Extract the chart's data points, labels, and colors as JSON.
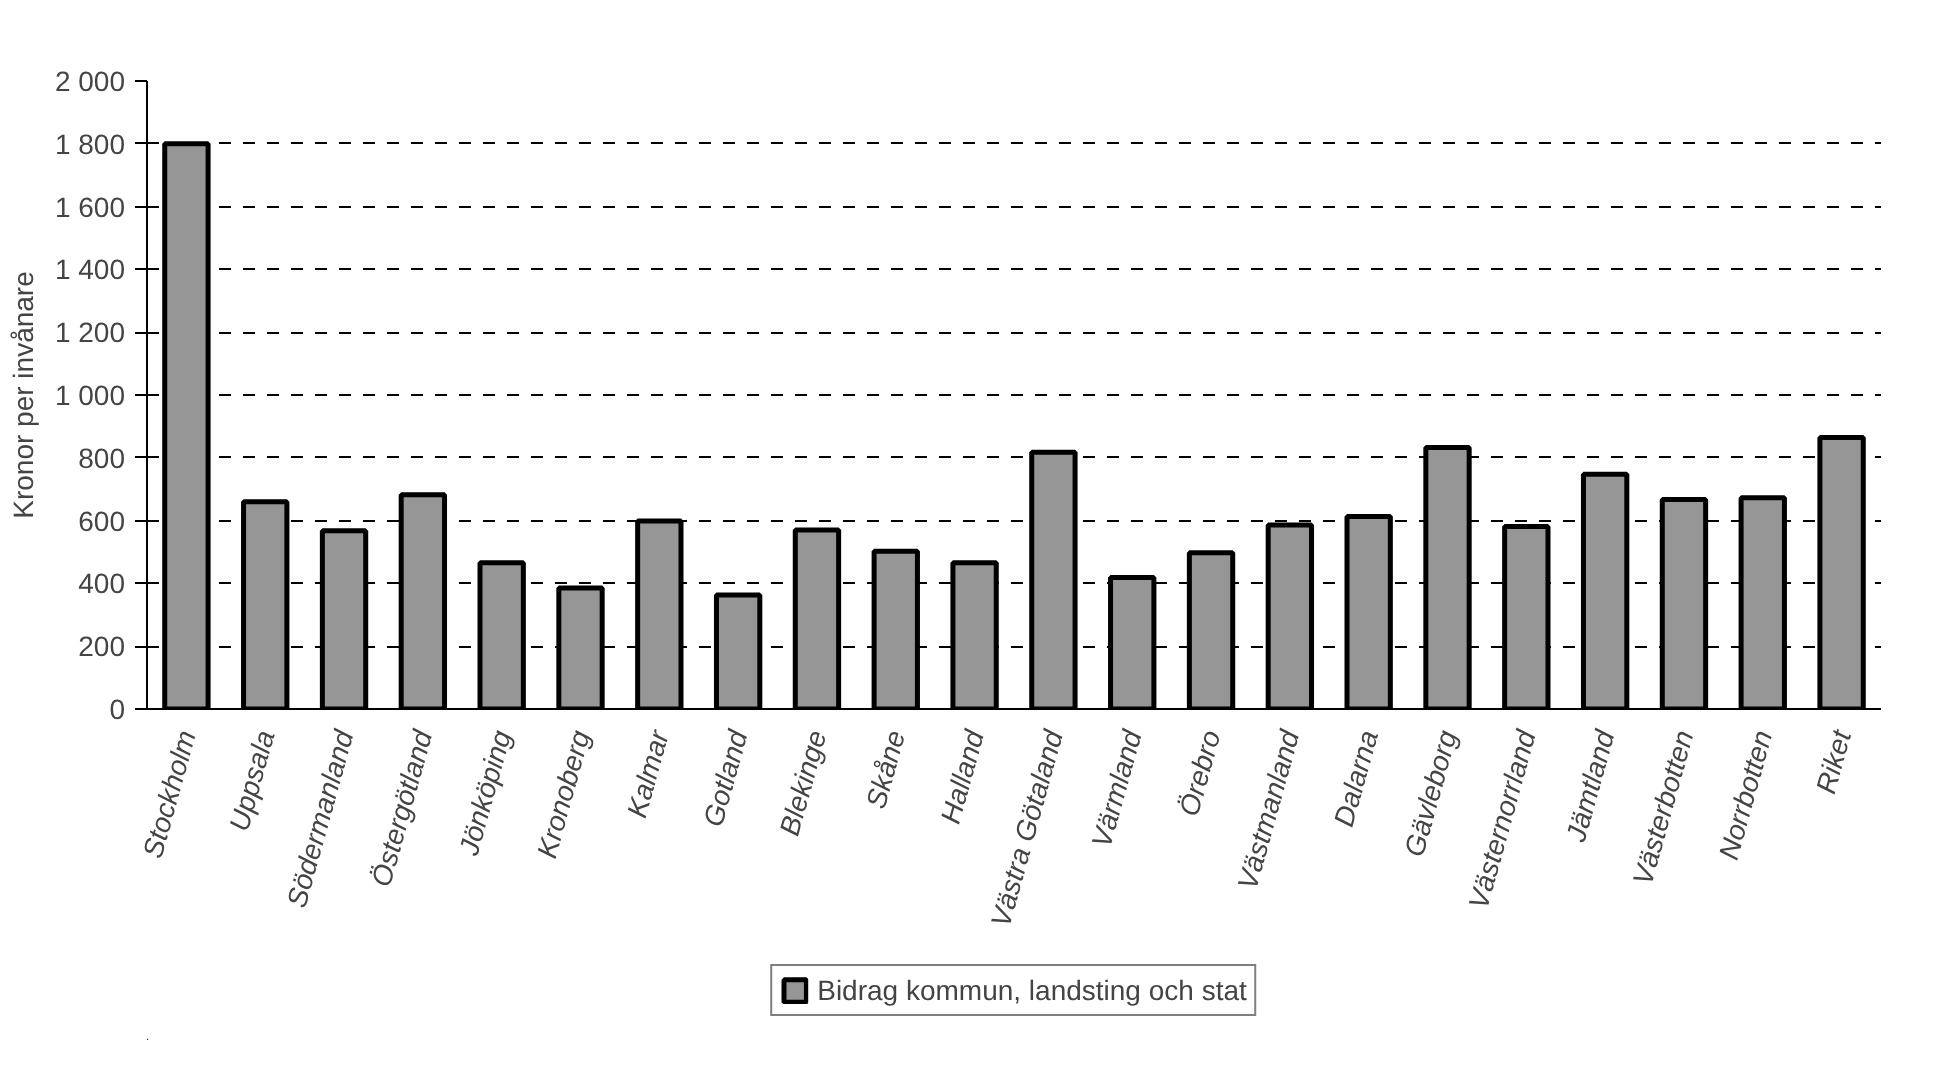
{
  "chart_data": {
    "type": "bar",
    "ylabel": "Kronor per invånare",
    "categories": [
      "Stockholm",
      "Uppsala",
      "Södermanland",
      "Östergötland",
      "Jönköping",
      "Kronoberg",
      "Kalmar",
      "Gotland",
      "Blekinge",
      "Skåne",
      "Halland",
      "Västra Götaland",
      "Värmland",
      "Örebro",
      "Västmanland",
      "Dalarna",
      "Gävleborg",
      "Västernorrland",
      "Jämtland",
      "Västerbotten",
      "Norrbotten",
      "Riket"
    ],
    "series": [
      {
        "name": "Bidrag kommun, landsting och stat",
        "color": "#969696",
        "values": [
          1800,
          660,
          568,
          682,
          466,
          385,
          599,
          363,
          570,
          502,
          466,
          818,
          419,
          498,
          586,
          613,
          833,
          581,
          748,
          667,
          673,
          865
        ]
      }
    ],
    "ylim": [
      0,
      2000
    ],
    "yticks": [
      0,
      200,
      400,
      600,
      800,
      {
        "value": 1000,
        "label": "1 000"
      },
      {
        "value": 1200,
        "label": "1 200"
      },
      {
        "value": 1400,
        "label": "1 400"
      },
      {
        "value": 1600,
        "label": "1 600"
      },
      {
        "value": 1800,
        "label": "1 800"
      },
      {
        "value": 2000,
        "label": "2 000"
      }
    ],
    "grid": "y",
    "legend": "bottom"
  }
}
